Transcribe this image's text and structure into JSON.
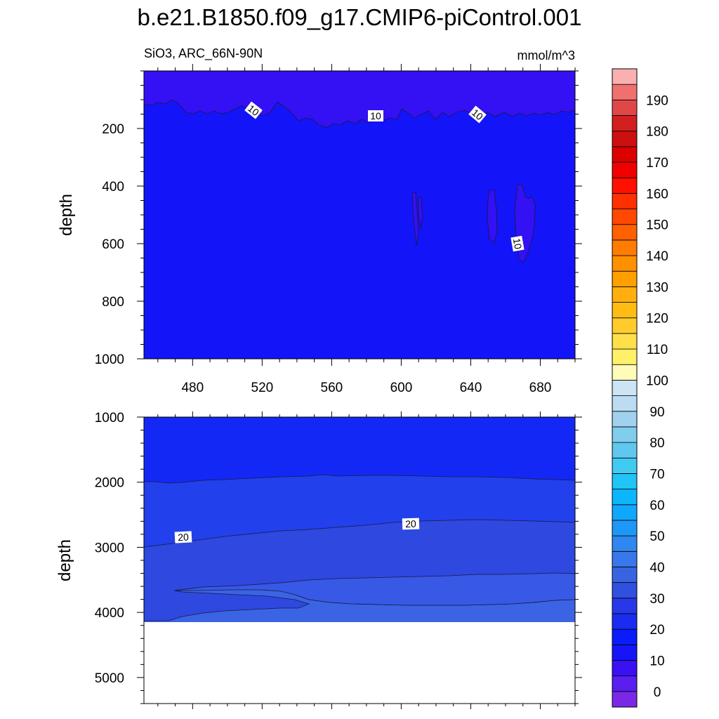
{
  "chart_data": {
    "type": "heatmap",
    "title": "b.e21.B1850.f09_g17.CMIP6-piControl.001",
    "subtitle_left": "SiO3, ARC_66N-90N",
    "subtitle_right": "mmol/m^3",
    "xlabel": "",
    "ylabel": "depth",
    "xlim": [
      452,
      700
    ],
    "x_ticks": [
      "480",
      "520",
      "560",
      "600",
      "640",
      "680"
    ],
    "panels": [
      {
        "name": "upper",
        "ylim": [
          0,
          1000
        ],
        "y_ticks": [
          "200",
          "400",
          "600",
          "800",
          "1000"
        ],
        "contour_labels": [
          "10",
          "10",
          "10",
          "10"
        ]
      },
      {
        "name": "lower",
        "ylim": [
          1000,
          5400
        ],
        "y_ticks": [
          "1000",
          "2000",
          "3000",
          "4000",
          "5000"
        ],
        "contour_labels": [
          "20",
          "20"
        ],
        "bottom_depth": 4120
      }
    ],
    "colorbar": {
      "levels": [
        -10,
        -5,
        0,
        5,
        10,
        15,
        20,
        25,
        30,
        35,
        40,
        45,
        50,
        55,
        60,
        65,
        70,
        75,
        80,
        85,
        90,
        95,
        100,
        105,
        110,
        115,
        120,
        125,
        130,
        135,
        140,
        145,
        150,
        155,
        160,
        165,
        170,
        175,
        180,
        185,
        190,
        195
      ],
      "tick_labels": [
        "0",
        "10",
        "20",
        "30",
        "40",
        "50",
        "60",
        "70",
        "80",
        "90",
        "100",
        "110",
        "120",
        "130",
        "140",
        "150",
        "160",
        "170",
        "180",
        "190"
      ],
      "colors": [
        "#7a28e8",
        "#5a1ef0",
        "#3a10f5",
        "#1515f8",
        "#0a1cfa",
        "#1a2cf0",
        "#2838e8",
        "#3050e0",
        "#3864e2",
        "#3878ea",
        "#2e88f0",
        "#1d98f8",
        "#10a8fc",
        "#0cb6fc",
        "#20c4f6",
        "#40ccf2",
        "#60c8ee",
        "#80cdee",
        "#a0d2ef",
        "#bcdcf2",
        "#cce4f3",
        "#fffbb8",
        "#fff06a",
        "#ffe04a",
        "#ffcc2c",
        "#ffbc14",
        "#ffb010",
        "#ffa000",
        "#ff9000",
        "#ff7c00",
        "#ff6000",
        "#ff4800",
        "#ff3000",
        "#ff1000",
        "#f00000",
        "#dc0000",
        "#cc1010",
        "#d22020",
        "#e04848",
        "#f07070",
        "#fab0b0"
      ]
    }
  }
}
